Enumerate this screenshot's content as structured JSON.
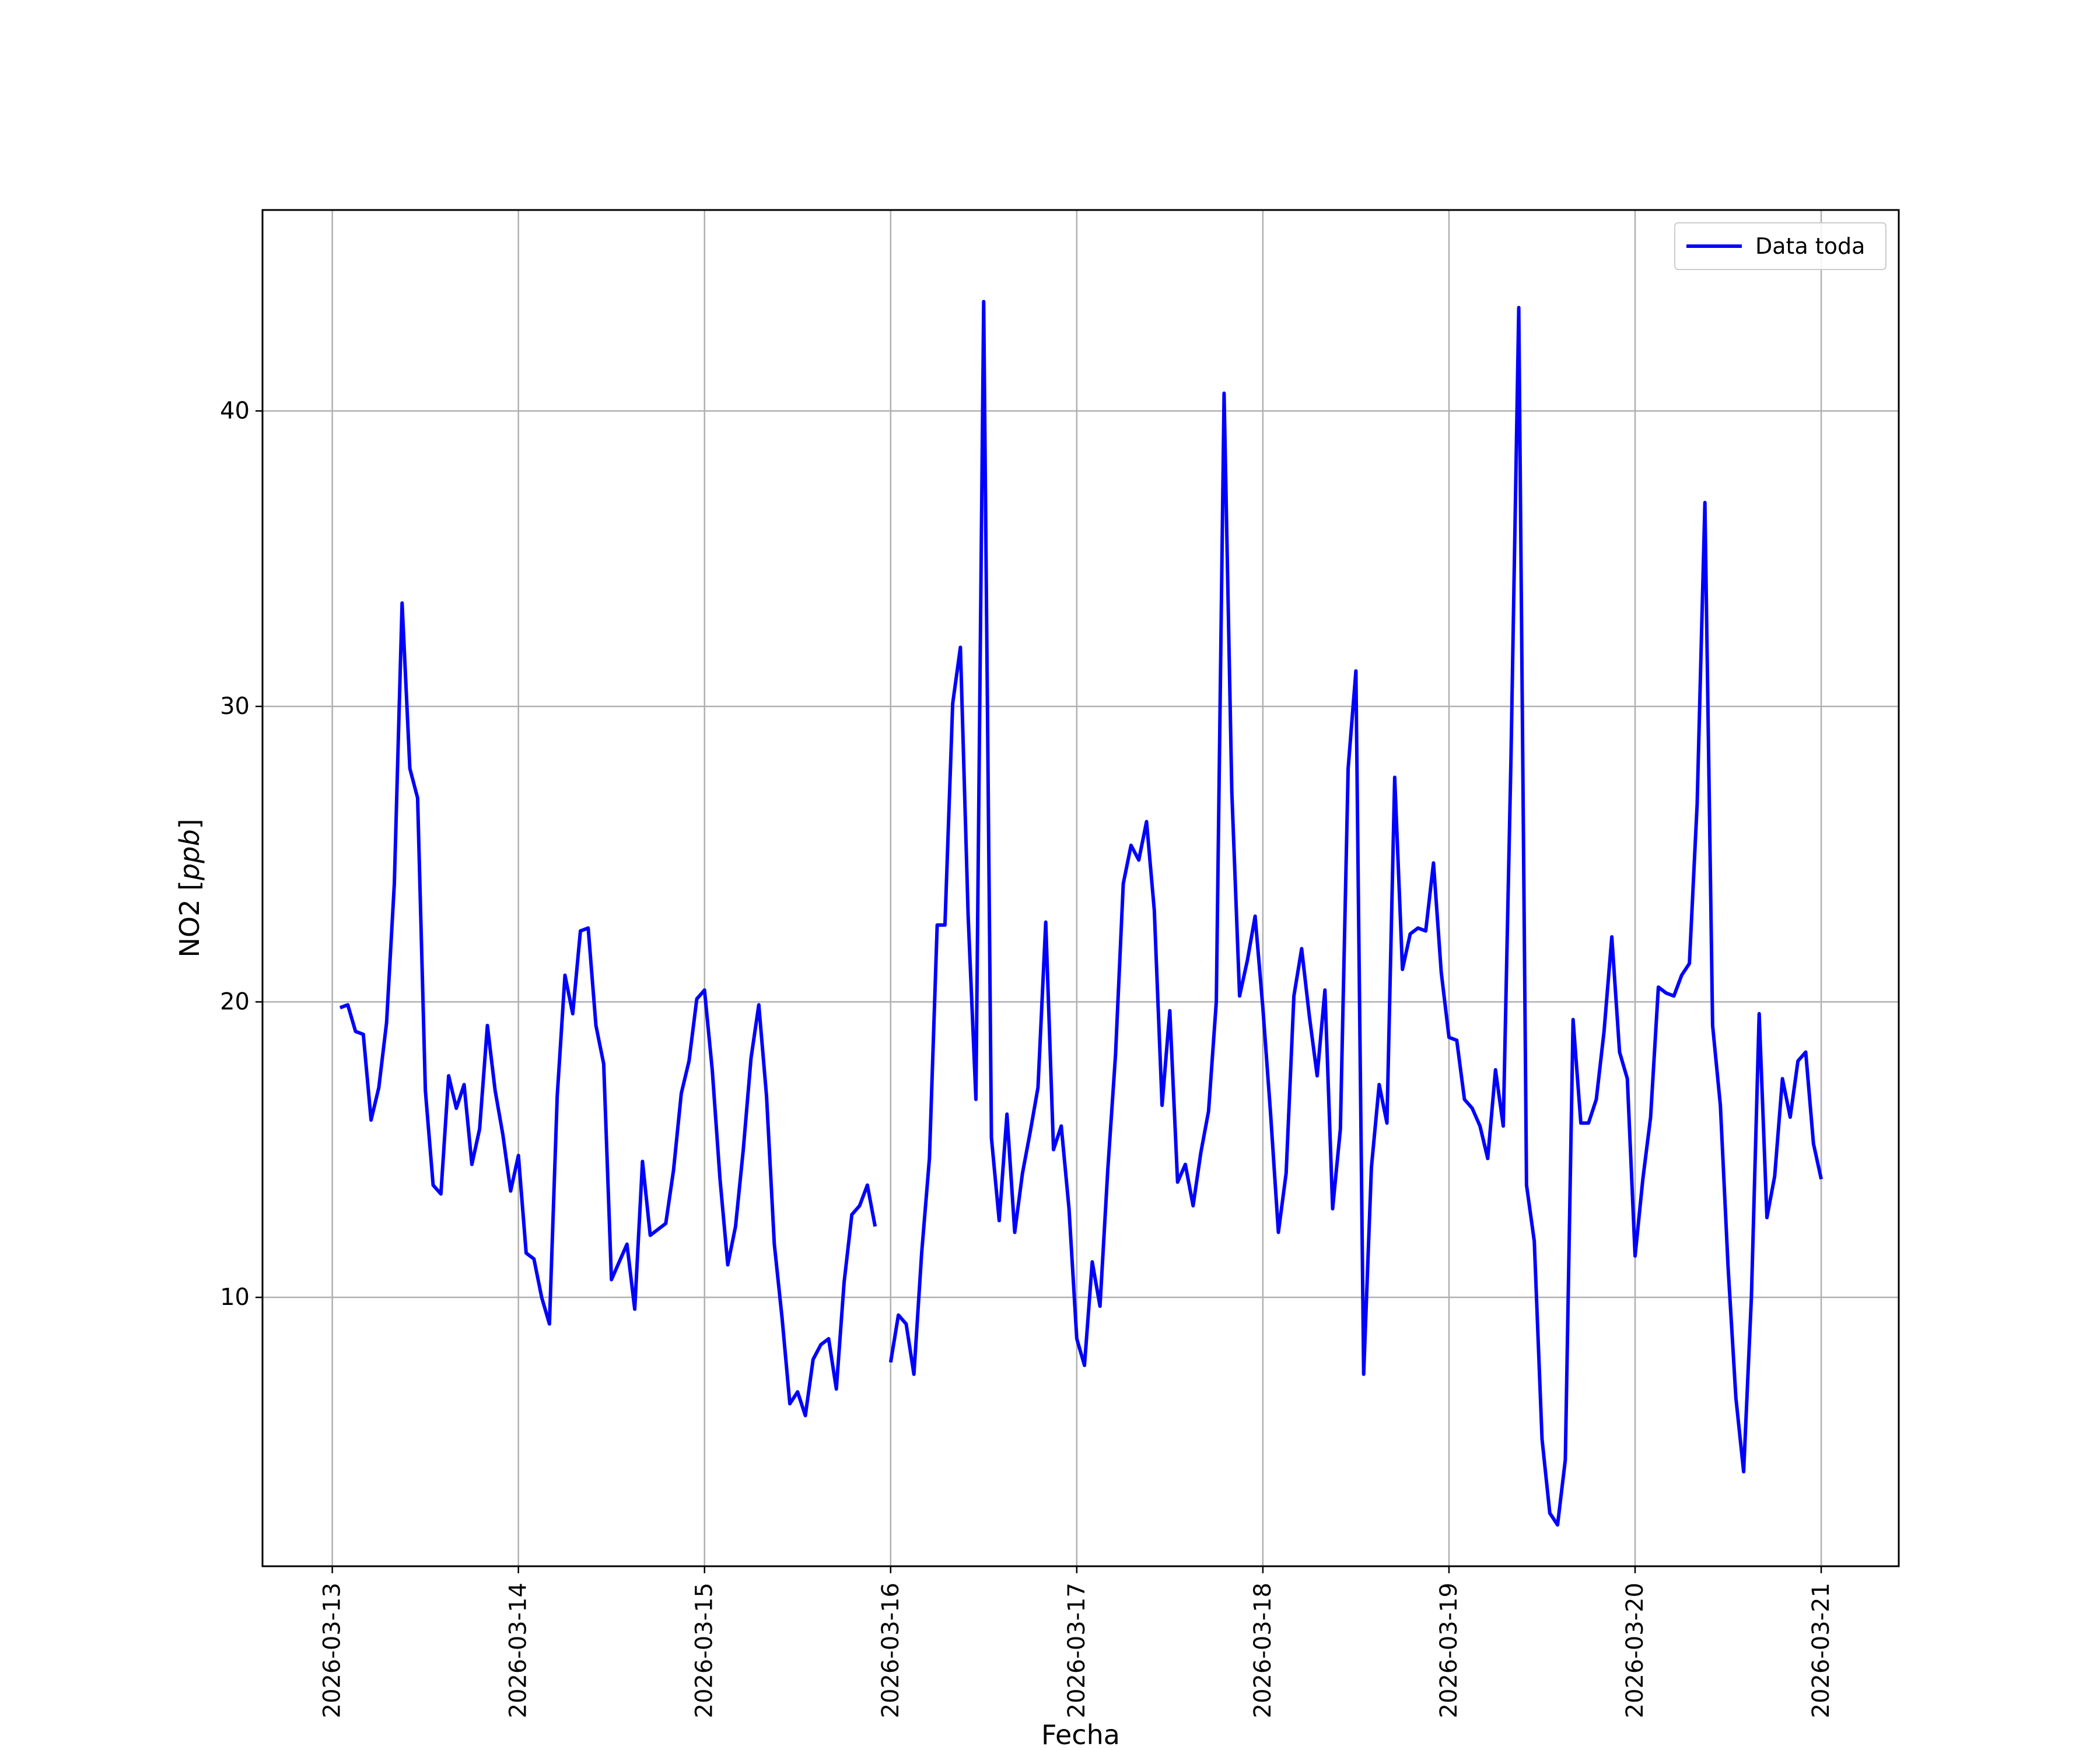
{
  "chart_data": {
    "type": "line",
    "xlabel": "Fecha",
    "ylabel_text": "NO2 [",
    "ylabel_unit": "ppb",
    "ylabel_close": "]",
    "xlim": [
      "2026-03-12 15:00",
      "2026-03-21 10:00"
    ],
    "ylim": [
      0.9,
      46.8
    ],
    "x_ticks": [
      "2026-03-13",
      "2026-03-14",
      "2026-03-15",
      "2026-03-16",
      "2026-03-17",
      "2026-03-18",
      "2026-03-19",
      "2026-03-20",
      "2026-03-21"
    ],
    "y_ticks": [
      10,
      20,
      30,
      40
    ],
    "grid": true,
    "legend_position": "top-right",
    "series": [
      {
        "name": "Data toda",
        "color": "#0000ff",
        "segments": [
          {
            "start": "2026-03-13 01:00",
            "step_hours": 1,
            "values": [
              19.8,
              19.9,
              19.0,
              18.9,
              16.0,
              17.1,
              19.3,
              24.0,
              33.5,
              27.9,
              26.9,
              17.0,
              13.8,
              13.5,
              17.5,
              16.4,
              17.2,
              14.5,
              15.7,
              19.2,
              17.0,
              15.5,
              13.6,
              14.8,
              11.5,
              11.3,
              10.0,
              9.1,
              16.8,
              20.9,
              19.6,
              22.4,
              22.5,
              19.2,
              17.9,
              10.6,
              11.2,
              11.8,
              9.6,
              14.6,
              12.1,
              12.3,
              12.5,
              14.3,
              16.9,
              18.0,
              20.1,
              20.4,
              17.7,
              14.0,
              11.1,
              12.4,
              15.0,
              18.1,
              19.9,
              16.8,
              11.8,
              9.3,
              6.4,
              6.8,
              6.0,
              7.9,
              8.4,
              8.6,
              6.9,
              10.5,
              12.8,
              13.1,
              13.8,
              12.4
            ]
          },
          {
            "start": "2026-03-16 00:00",
            "step_hours": 1,
            "values": [
              7.8,
              9.4,
              9.1,
              7.4,
              11.5,
              14.7,
              22.6,
              22.6,
              30.1,
              32.0,
              22.9,
              16.7,
              43.7,
              15.4,
              12.6,
              16.2,
              12.2,
              14.2,
              15.6,
              17.1,
              22.7,
              15.0,
              15.8,
              13.0,
              8.6,
              7.7,
              11.2,
              9.7,
              14.3,
              18.2,
              24.0,
              25.3,
              24.8,
              26.1,
              23.1,
              16.5,
              19.7,
              13.9,
              14.5,
              13.1,
              14.9,
              16.3,
              20.0,
              40.6,
              27.1,
              20.2,
              21.4,
              22.9,
              19.8,
              16.2,
              12.2,
              14.2,
              20.2,
              21.8,
              19.5,
              17.5,
              20.4,
              13.0,
              15.7,
              27.9,
              31.2,
              7.4,
              14.4,
              17.2,
              15.9,
              27.6,
              21.1,
              22.3,
              22.5,
              22.4,
              24.7,
              21.0,
              18.8,
              18.7,
              16.7,
              16.4,
              15.8,
              14.7,
              17.7,
              15.8,
              28.3,
              43.5,
              13.8,
              11.9,
              5.2,
              2.7,
              2.3,
              4.5,
              19.4,
              15.9,
              15.9,
              16.7,
              19.0,
              22.2,
              18.3,
              17.4,
              11.4,
              14.0,
              16.1,
              20.5,
              20.3,
              20.2,
              20.9,
              21.3,
              26.7,
              36.9,
              19.2,
              16.5,
              11.0,
              6.6,
              4.1,
              10.0,
              19.6,
              12.7,
              14.1,
              17.4,
              16.1,
              18.0,
              18.3,
              15.2,
              14.0
            ]
          }
        ]
      }
    ]
  }
}
